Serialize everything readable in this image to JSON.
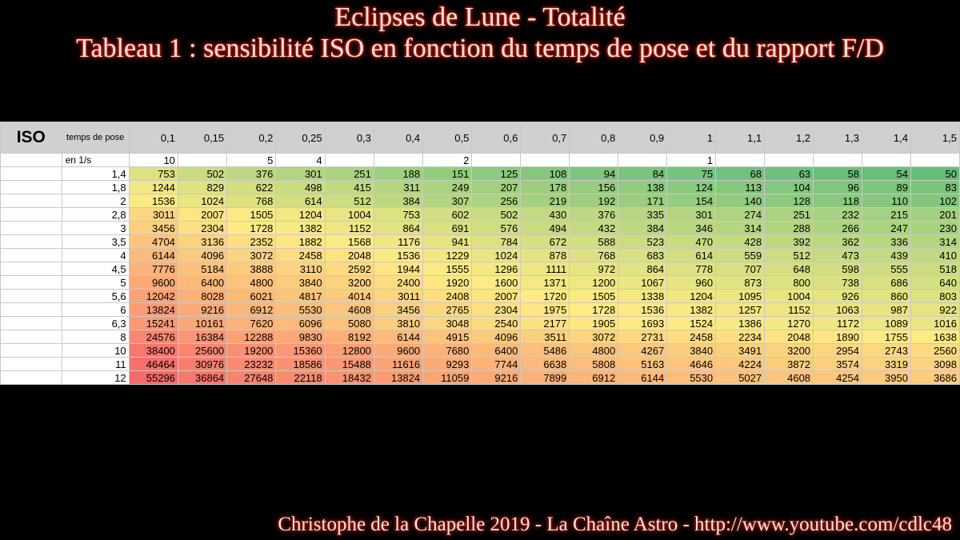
{
  "title_line1": "Eclipses de Lune - Totalité",
  "title_line2": "Tableau 1 : sensibilité ISO en fonction du temps de pose et du rapport F/D",
  "footer": "Christophe de la Chapelle 2019  - La Chaîne Astro - http://www.youtube.com/cdlc48",
  "table": {
    "iso_header": "ISO",
    "pose_header": "temps de pose",
    "subrow_label": "en 1/s",
    "exposures": [
      "0,1",
      "0,15",
      "0,2",
      "0,25",
      "0,3",
      "0,4",
      "0,5",
      "0,6",
      "0,7",
      "0,8",
      "0,9",
      "1",
      "1,1",
      "1,2",
      "1,3",
      "1,4",
      "1,5"
    ],
    "inverse": [
      "10",
      "",
      "5",
      "4",
      "",
      "",
      "2",
      "",
      "",
      "",
      "",
      "1",
      "",
      "",
      "",
      "",
      ""
    ],
    "rows": [
      {
        "fd": "1,4",
        "values": [
          753,
          502,
          376,
          301,
          251,
          188,
          151,
          125,
          108,
          94,
          84,
          75,
          68,
          63,
          58,
          54,
          50
        ]
      },
      {
        "fd": "1,8",
        "values": [
          1244,
          829,
          622,
          498,
          415,
          311,
          249,
          207,
          178,
          156,
          138,
          124,
          113,
          104,
          96,
          89,
          83
        ]
      },
      {
        "fd": "2",
        "values": [
          1536,
          1024,
          768,
          614,
          512,
          384,
          307,
          256,
          219,
          192,
          171,
          154,
          140,
          128,
          118,
          110,
          102
        ]
      },
      {
        "fd": "2,8",
        "values": [
          3011,
          2007,
          1505,
          1204,
          1004,
          753,
          602,
          502,
          430,
          376,
          335,
          301,
          274,
          251,
          232,
          215,
          201
        ]
      },
      {
        "fd": "3",
        "values": [
          3456,
          2304,
          1728,
          1382,
          1152,
          864,
          691,
          576,
          494,
          432,
          384,
          346,
          314,
          288,
          266,
          247,
          230
        ]
      },
      {
        "fd": "3,5",
        "values": [
          4704,
          3136,
          2352,
          1882,
          1568,
          1176,
          941,
          784,
          672,
          588,
          523,
          470,
          428,
          392,
          362,
          336,
          314
        ]
      },
      {
        "fd": "4",
        "values": [
          6144,
          4096,
          3072,
          2458,
          2048,
          1536,
          1229,
          1024,
          878,
          768,
          683,
          614,
          559,
          512,
          473,
          439,
          410
        ]
      },
      {
        "fd": "4,5",
        "values": [
          7776,
          5184,
          3888,
          3110,
          2592,
          1944,
          1555,
          1296,
          1111,
          972,
          864,
          778,
          707,
          648,
          598,
          555,
          518
        ]
      },
      {
        "fd": "5",
        "values": [
          9600,
          6400,
          4800,
          3840,
          3200,
          2400,
          1920,
          1600,
          1371,
          1200,
          1067,
          960,
          873,
          800,
          738,
          686,
          640
        ]
      },
      {
        "fd": "5,6",
        "values": [
          12042,
          8028,
          6021,
          4817,
          4014,
          3011,
          2408,
          2007,
          1720,
          1505,
          1338,
          1204,
          1095,
          1004,
          926,
          860,
          803
        ]
      },
      {
        "fd": "6",
        "values": [
          13824,
          9216,
          6912,
          5530,
          4608,
          3456,
          2765,
          2304,
          1975,
          1728,
          1536,
          1382,
          1257,
          1152,
          1063,
          987,
          922
        ]
      },
      {
        "fd": "6,3",
        "values": [
          15241,
          10161,
          7620,
          6096,
          5080,
          3810,
          3048,
          2540,
          2177,
          1905,
          1693,
          1524,
          1386,
          1270,
          1172,
          1089,
          1016
        ]
      },
      {
        "fd": "8",
        "values": [
          24576,
          16384,
          12288,
          9830,
          8192,
          6144,
          4915,
          4096,
          3511,
          3072,
          2731,
          2458,
          2234,
          2048,
          1890,
          1755,
          1638
        ]
      },
      {
        "fd": "10",
        "values": [
          38400,
          25600,
          19200,
          15360,
          12800,
          9600,
          7680,
          6400,
          5486,
          4800,
          4267,
          3840,
          3491,
          3200,
          2954,
          2743,
          2560
        ]
      },
      {
        "fd": "11",
        "values": [
          46464,
          30976,
          23232,
          18586,
          15488,
          11616,
          9293,
          7744,
          6638,
          5808,
          5163,
          4646,
          4224,
          3872,
          3574,
          3319,
          3098
        ]
      },
      {
        "fd": "12",
        "values": [
          55296,
          36864,
          27648,
          22118,
          18432,
          13824,
          11059,
          9216,
          7899,
          6912,
          6144,
          5530,
          5027,
          4608,
          4254,
          3950,
          3686
        ]
      }
    ]
  },
  "colors": {
    "scale_low": "#63be7b",
    "scale_mid": "#ffeb84",
    "scale_high": "#f8696b"
  }
}
